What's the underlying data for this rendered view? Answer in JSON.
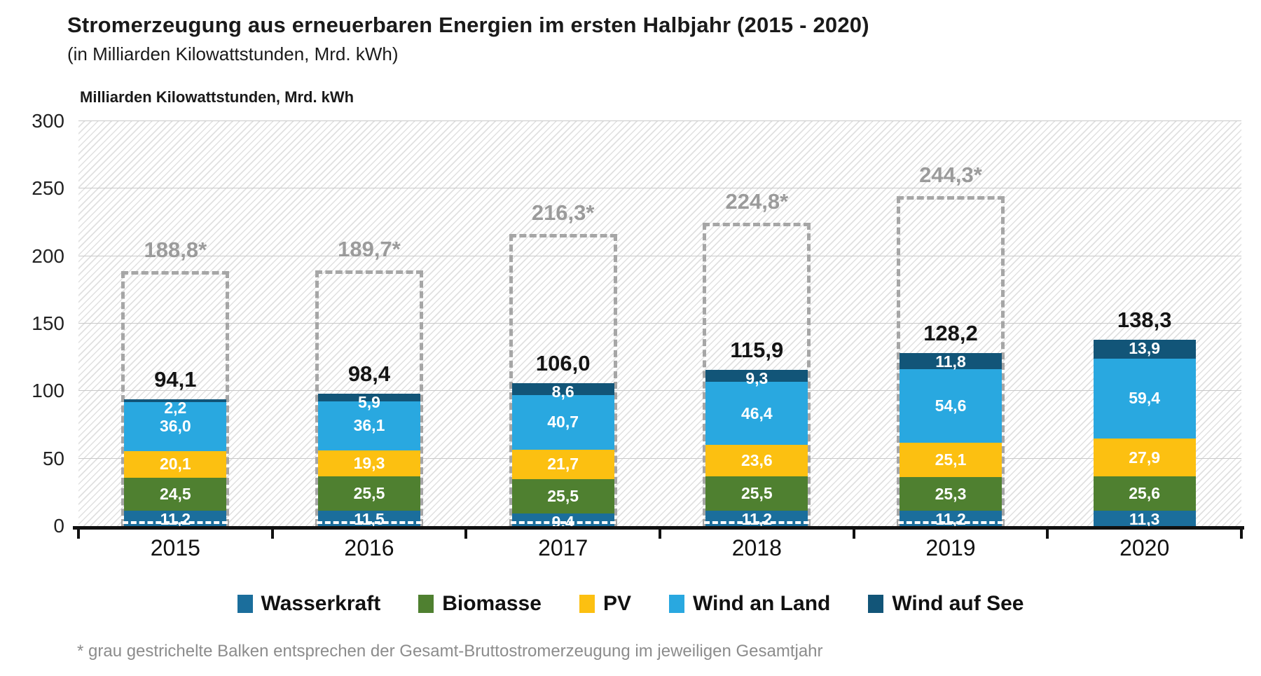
{
  "title": "Stromerzeugung aus erneuerbaren Energien im ersten Halbjahr (2015 - 2020)",
  "subtitle": "(in Milliarden Kilowattstunden, Mrd. kWh)",
  "y_axis_title": "Milliarden Kilowattstunden, Mrd. kWh",
  "footnote": "* grau gestrichelte Balken entsprechen der Gesamt-Bruttostromerzeugung im jeweiligen Gesamtjahr",
  "decimal_separator": ",",
  "chart_data": {
    "type": "bar",
    "stacked": true,
    "grid": true,
    "legend_position": "bottom",
    "background_hatched": true,
    "ylim": [
      0,
      300
    ],
    "yticks": [
      0,
      50,
      100,
      150,
      200,
      250,
      300
    ],
    "categories": [
      "2015",
      "2016",
      "2017",
      "2018",
      "2019",
      "2020"
    ],
    "series": [
      {
        "name": "Wasserkraft",
        "color": "#1b6e9c",
        "values": [
          11.2,
          11.5,
          9.4,
          11.2,
          11.2,
          11.3
        ]
      },
      {
        "name": "Biomasse",
        "color": "#4f8030",
        "values": [
          24.5,
          25.5,
          25.5,
          25.5,
          25.3,
          25.6
        ]
      },
      {
        "name": "PV",
        "color": "#fcc011",
        "values": [
          20.1,
          19.3,
          21.7,
          23.6,
          25.1,
          27.9
        ]
      },
      {
        "name": "Wind an Land",
        "color": "#29a8e0",
        "values": [
          36.0,
          36.1,
          40.7,
          46.4,
          54.6,
          59.4
        ]
      },
      {
        "name": "Wind auf See",
        "color": "#125578",
        "values": [
          2.2,
          5.9,
          8.6,
          9.3,
          11.8,
          13.9
        ]
      }
    ],
    "half_year_totals": [
      94.1,
      98.4,
      106.0,
      115.9,
      128.2,
      138.3
    ],
    "annual_totals": [
      188.8,
      189.7,
      216.3,
      224.8,
      244.3,
      null
    ],
    "annual_total_suffix": "*",
    "dashed_bar_color": "#a6a6a6"
  }
}
